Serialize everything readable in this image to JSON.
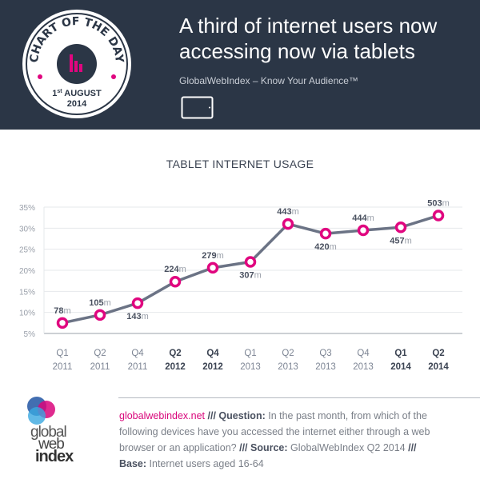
{
  "header": {
    "title_line1": "A third of internet users now",
    "title_line2": "accessing now via tablets",
    "subtitle": "GlobalWebIndex – Know Your Audience™",
    "device_icon": "tablet-icon",
    "badge": {
      "text": "CHART OF THE DAY",
      "date_day": "1",
      "date_suffix": "st",
      "date_month": "AUGUST",
      "date_year": "2014"
    }
  },
  "chart_data": {
    "type": "line",
    "title": "TABLET INTERNET USAGE",
    "categories": [
      [
        "Q1",
        "2011"
      ],
      [
        "Q2",
        "2011"
      ],
      [
        "Q4",
        "2011"
      ],
      [
        "Q2",
        "2012"
      ],
      [
        "Q4",
        "2012"
      ],
      [
        "Q1",
        "2013"
      ],
      [
        "Q2",
        "2013"
      ],
      [
        "Q3",
        "2013"
      ],
      [
        "Q4",
        "2013"
      ],
      [
        "Q1",
        "2014"
      ],
      [
        "Q2",
        "2014"
      ]
    ],
    "category_bold": [
      false,
      false,
      false,
      true,
      true,
      false,
      false,
      false,
      false,
      true,
      true
    ],
    "values": [
      7.5,
      9.4,
      12.2,
      17.3,
      20.6,
      22.0,
      31.0,
      28.7,
      29.5,
      30.2,
      33.0
    ],
    "data_labels": [
      "78",
      "105",
      "143",
      "224",
      "279",
      "307",
      "443",
      "420",
      "444",
      "457",
      "503"
    ],
    "data_label_unit": "m",
    "data_label_position": [
      "above",
      "above",
      "below",
      "above",
      "above",
      "below",
      "above",
      "below",
      "above",
      "below",
      "above"
    ],
    "yticks": [
      "5%",
      "10%",
      "15%",
      "20%",
      "25%",
      "30%",
      "35%"
    ],
    "ylim": [
      5,
      35
    ],
    "grid": true,
    "colors": {
      "line": "#6b7385",
      "marker": "#e0067f"
    }
  },
  "footer": {
    "logo_text": [
      "global",
      "web",
      "index"
    ],
    "site": "globalwebindex.net",
    "sep": " /// ",
    "question_label": "Question:",
    "question": " In the past month, from which of the following devices have you accessed the internet either through a web browser or an application?",
    "source_label": "Source:",
    "source": " GlobalWebIndex Q2 2014 ",
    "base_label": "Base:",
    "base": " Internet users aged 16-64"
  }
}
